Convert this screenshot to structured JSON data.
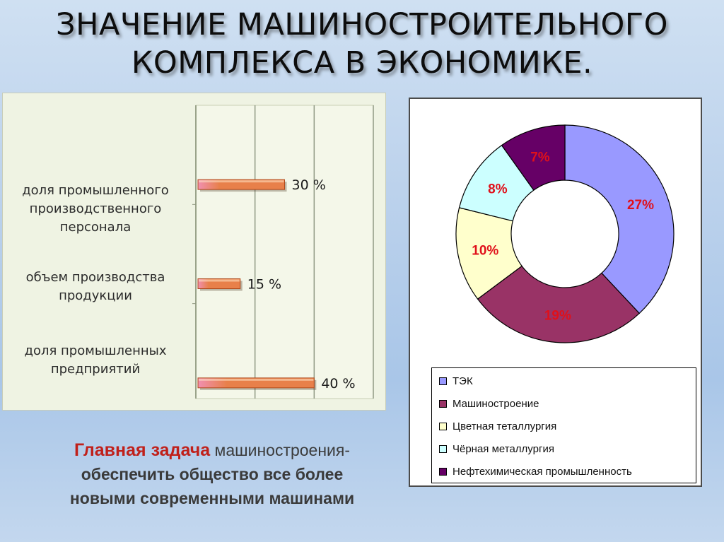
{
  "title": {
    "line1": "ЗНАЧЕНИЕ МАШИНОСТРОИТЕЛЬНОГО",
    "line2": "КОМПЛЕКСА В ЭКОНОМИКЕ."
  },
  "task": {
    "accent": "Главная задача",
    "rest": " машиностроения-",
    "line2": "обеспечить общество все более",
    "line3": "новыми современными машинами"
  },
  "colors": {
    "bar_fill": "#e8804a",
    "bar_tip": "#f08fb0",
    "accent": "#c0201a",
    "panel_bg": "#eff3e3"
  },
  "chart_data": [
    {
      "type": "bar",
      "orientation": "horizontal",
      "title": "",
      "xlabel": "",
      "ylabel": "",
      "categories": [
        [
          "доля промышленного",
          "производственного",
          "персонала"
        ],
        [
          "объем производства",
          "продукции"
        ],
        [
          "доля промышленных",
          "предприятий"
        ]
      ],
      "values": [
        30,
        15,
        40
      ],
      "value_labels": [
        "30 %",
        "15 %",
        "40 %"
      ],
      "xlim": [
        0,
        60
      ],
      "grid": true,
      "legend": "none"
    },
    {
      "type": "pie",
      "donut": true,
      "title": "",
      "labels": [
        "ТЭК",
        "Машиностроение",
        "Цветная теталлургия",
        "Чёрная металлургия",
        "Нефтехимическая промышленность"
      ],
      "values": [
        27,
        19,
        10,
        8,
        7
      ],
      "value_labels": [
        "27%",
        "19%",
        "10%",
        "8%",
        "7%"
      ],
      "colors": [
        "#9999ff",
        "#993366",
        "#ffffcc",
        "#ccffff",
        "#660066"
      ],
      "label_color": "#e0101a",
      "legend": "bottom"
    }
  ]
}
